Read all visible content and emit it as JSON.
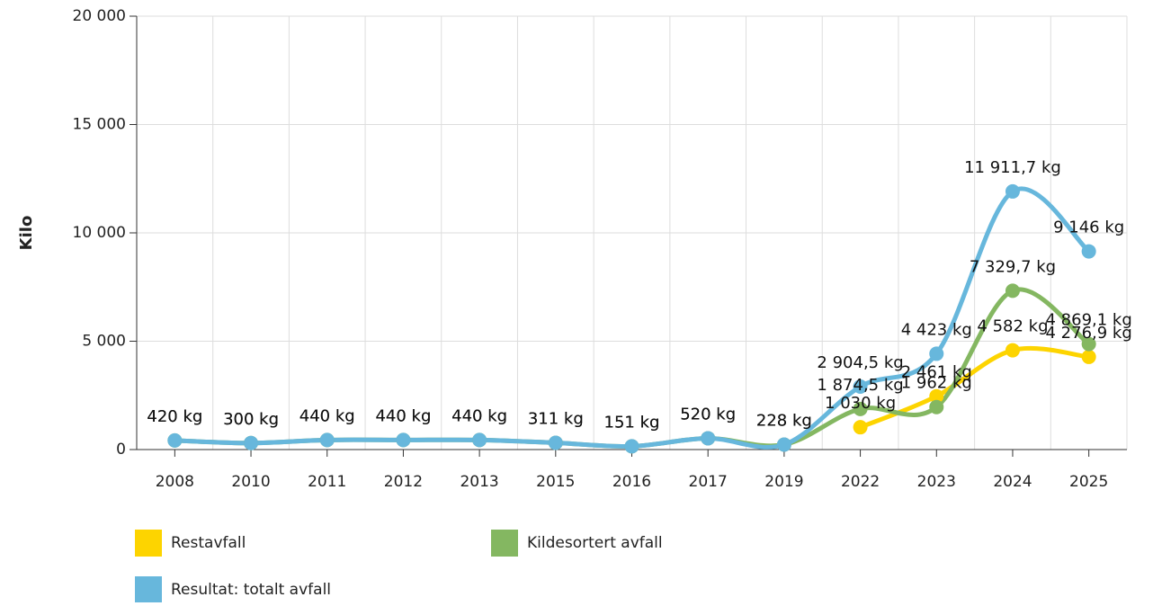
{
  "chart_data": {
    "type": "line",
    "y_label": "Kilo",
    "categories": [
      "2008",
      "2010",
      "2011",
      "2012",
      "2013",
      "2015",
      "2016",
      "2017",
      "2019",
      "2022",
      "2023",
      "2024",
      "2025"
    ],
    "ylim": [
      0,
      20000
    ],
    "yticks": [
      {
        "value": 0,
        "label": "0"
      },
      {
        "value": 5000,
        "label": "5 000"
      },
      {
        "value": 10000,
        "label": "10 000"
      },
      {
        "value": 15000,
        "label": "15 000"
      },
      {
        "value": 20000,
        "label": "20 000"
      }
    ],
    "grid": true,
    "legend": "bottom",
    "series": [
      {
        "name": "Restavfall",
        "color": "#fdd400",
        "values": [
          null,
          null,
          null,
          null,
          null,
          null,
          null,
          null,
          null,
          1030,
          2461,
          4582,
          4276.9
        ],
        "value_labels": [
          null,
          null,
          null,
          null,
          null,
          null,
          null,
          null,
          null,
          "1 030 kg",
          "2 461 kg",
          "4 582 kg",
          "4 276,9 kg"
        ]
      },
      {
        "name": "Kildesortert avfall",
        "color": "#84b761",
        "values": [
          420,
          300,
          440,
          440,
          440,
          311,
          151,
          520,
          228,
          1874.5,
          1962,
          7329.7,
          4869.1
        ],
        "value_labels": [
          "420 kg",
          "300 kg",
          "440 kg",
          "440 kg",
          "440 kg",
          "311 kg",
          "151 kg",
          "520 kg",
          "228 kg",
          "1 874,5 kg",
          "1 962 kg",
          "7 329,7 kg",
          "4 869,1 kg"
        ]
      },
      {
        "name": "Resultat: totalt avfall",
        "color": "#67b7dc",
        "values": [
          420,
          300,
          440,
          440,
          440,
          311,
          151,
          520,
          228,
          2904.5,
          4423,
          11911.7,
          9146
        ],
        "value_labels": [
          "420 kg",
          "300 kg",
          "440 kg",
          "440 kg",
          "440 kg",
          "311 kg",
          "151 kg",
          "520 kg",
          "228 kg",
          "2 904,5 kg",
          "4 423 kg",
          "11 911,7 kg",
          "9 146 kg"
        ]
      }
    ]
  }
}
